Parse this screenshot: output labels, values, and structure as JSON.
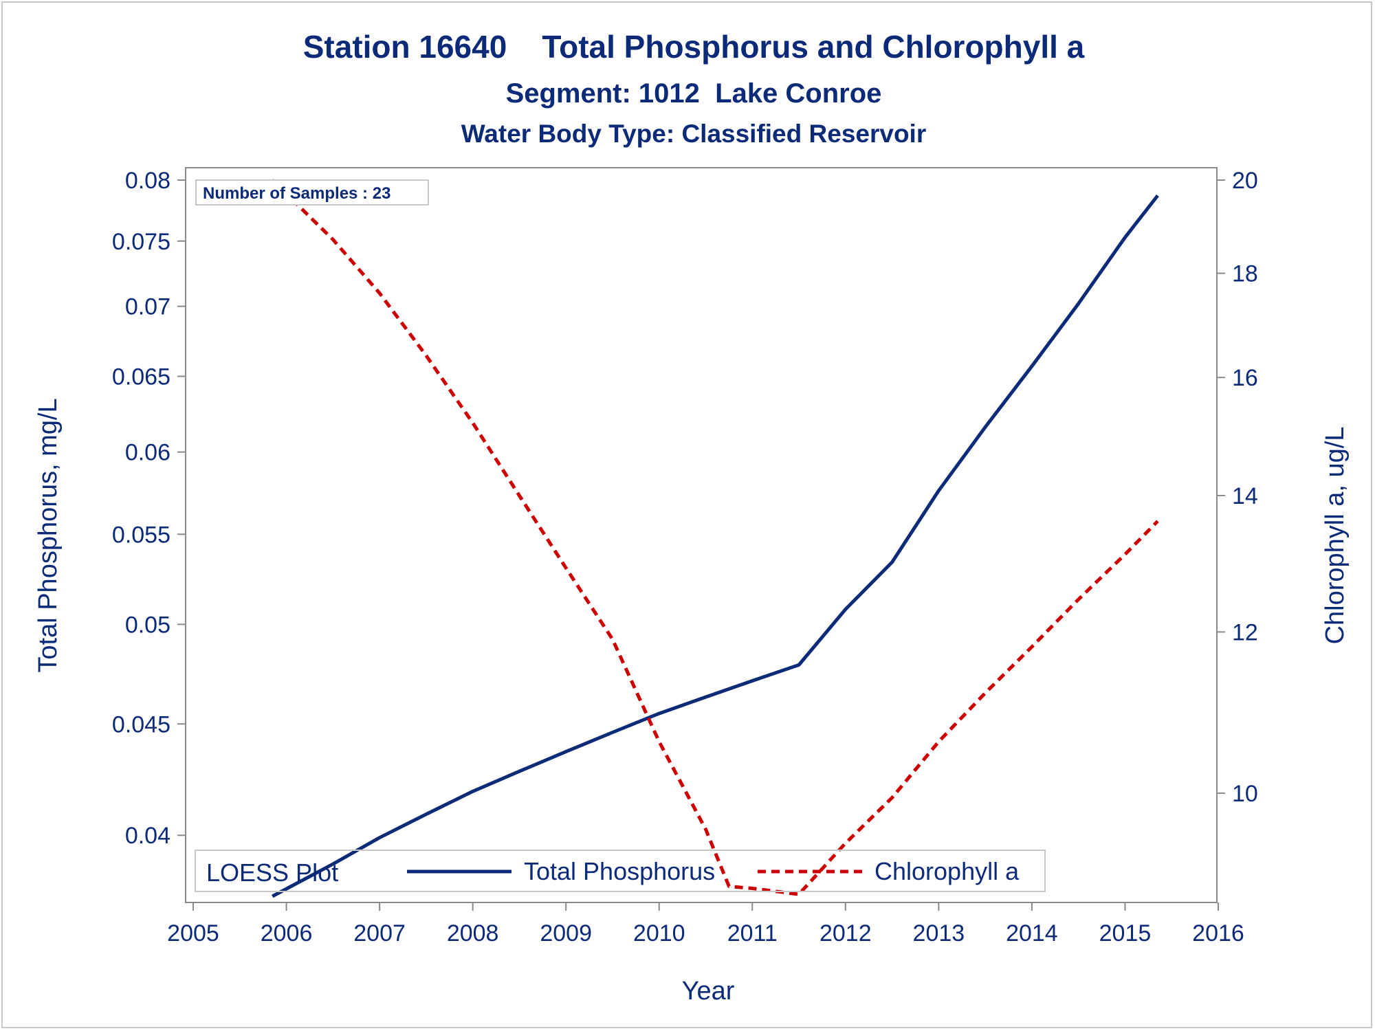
{
  "colors": {
    "text": "#0b2a78",
    "phosphorus": "#0b2a78",
    "chlorophyll": "#cc0000",
    "frame": "#8a8a8a",
    "inset_border": "#c8c8c8"
  },
  "titles": {
    "line1": "Station 16640    Total Phosphorus and Chlorophyll a",
    "line2": "Segment: 1012  Lake Conroe",
    "line3": "Water Body Type: Classified Reservoir"
  },
  "sample_note": "Number of Samples : 23",
  "legend": {
    "title": "LOESS Plot",
    "items": [
      {
        "label": "Total Phosphorus",
        "style": "solid",
        "color": "#0b2a78"
      },
      {
        "label": "Chlorophyll a",
        "style": "dashed",
        "color": "#cc0000"
      }
    ]
  },
  "chart_data": {
    "type": "line",
    "title": "Station 16640    Total Phosphorus and Chlorophyll a",
    "xlabel": "Year",
    "ylabel": "Total Phosphorus, mg/L",
    "y2label": "Chlorophyll a, ug/L",
    "x_ticks": [
      "2005",
      "2006",
      "2007",
      "2008",
      "2009",
      "2010",
      "2011",
      "2012",
      "2013",
      "2014",
      "2015",
      "2016"
    ],
    "y_ticks": [
      "0.04",
      "0.045",
      "0.05",
      "0.055",
      "0.06",
      "0.065",
      "0.07",
      "0.075",
      "0.08"
    ],
    "y2_ticks": [
      "10",
      "12",
      "14",
      "16",
      "18",
      "20"
    ],
    "xlim": [
      2005,
      2016
    ],
    "ylim": [
      0.0375,
      0.08
    ],
    "y_scale": "log",
    "y2lim": [
      8.9,
      20
    ],
    "y2_scale": "log",
    "grid": false,
    "legend_position": "bottom-inside",
    "series": [
      {
        "name": "Total Phosphorus",
        "axis": "left",
        "style": "solid",
        "color": "#0b2a78",
        "x": [
          2005.85,
          2006.5,
          2007.0,
          2007.5,
          2008.0,
          2008.5,
          2009.0,
          2009.5,
          2010.0,
          2010.5,
          2011.0,
          2011.5,
          2012.0,
          2012.5,
          2013.0,
          2013.5,
          2014.0,
          2014.5,
          2015.0,
          2015.35
        ],
        "values": [
          0.0375,
          0.0388,
          0.0399,
          0.0409,
          0.0419,
          0.0428,
          0.0437,
          0.0446,
          0.0455,
          0.0463,
          0.0471,
          0.0479,
          0.0508,
          0.0534,
          0.0576,
          0.0616,
          0.0657,
          0.0702,
          0.0753,
          0.0787
        ]
      },
      {
        "name": "Chlorophyll a",
        "axis": "right",
        "style": "dashed",
        "color": "#cc0000",
        "x": [
          2005.85,
          2006.5,
          2007.0,
          2007.5,
          2008.0,
          2008.5,
          2009.0,
          2009.5,
          2010.0,
          2010.5,
          2010.75,
          2011.0,
          2011.5,
          2012.0,
          2012.5,
          2013.0,
          2013.5,
          2014.0,
          2014.5,
          2015.0,
          2015.35
        ],
        "values": [
          20.0,
          18.7,
          17.6,
          16.4,
          15.2,
          14.0,
          12.9,
          11.9,
          10.6,
          9.6,
          9.0,
          8.98,
          8.92,
          9.45,
          9.95,
          10.6,
          11.2,
          11.8,
          12.45,
          13.1,
          13.6
        ]
      }
    ]
  }
}
